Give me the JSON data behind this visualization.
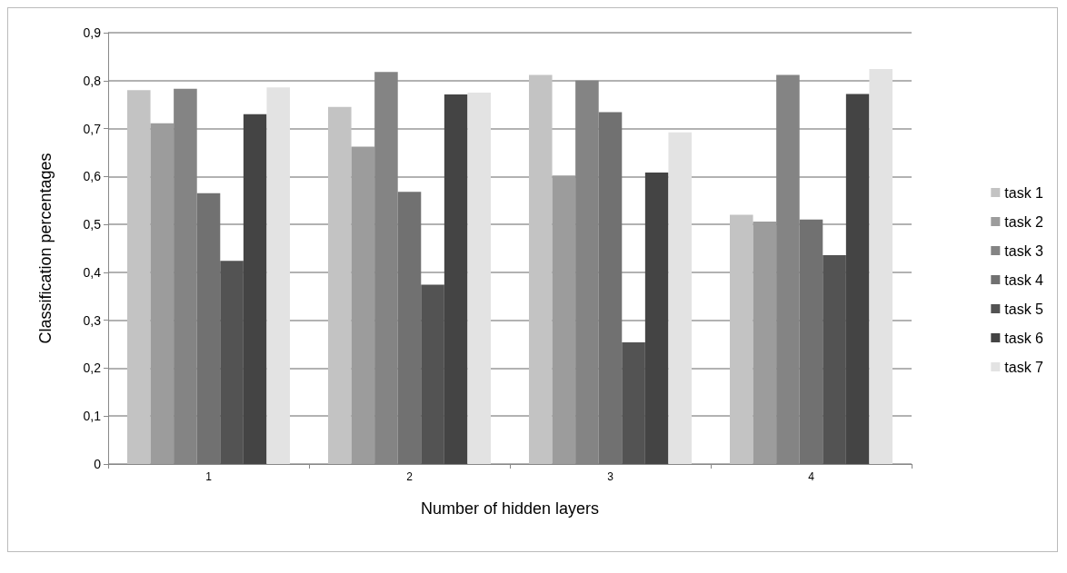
{
  "chart_data": {
    "type": "bar",
    "xlabel": "Number of hidden layers",
    "ylabel": "Classification percentages",
    "categories": [
      "1",
      "2",
      "3",
      "4"
    ],
    "series": [
      {
        "name": "task 1",
        "color": "#c3c3c3",
        "values": [
          0.78,
          0.745,
          0.812,
          0.52
        ]
      },
      {
        "name": "task 2",
        "color": "#9c9c9c",
        "values": [
          0.711,
          0.662,
          0.602,
          0.506
        ]
      },
      {
        "name": "task 3",
        "color": "#848484",
        "values": [
          0.783,
          0.818,
          0.8,
          0.812
        ]
      },
      {
        "name": "task 4",
        "color": "#717171",
        "values": [
          0.565,
          0.568,
          0.734,
          0.51
        ]
      },
      {
        "name": "task 5",
        "color": "#535353",
        "values": [
          0.424,
          0.374,
          0.254,
          0.436
        ]
      },
      {
        "name": "task 6",
        "color": "#444444",
        "values": [
          0.73,
          0.771,
          0.608,
          0.772
        ]
      },
      {
        "name": "task 7",
        "color": "#e3e3e3",
        "values": [
          0.786,
          0.775,
          0.692,
          0.824
        ]
      }
    ],
    "ylim": [
      0,
      0.9
    ],
    "yticks": [
      0,
      {
        "value": 0.1,
        "label": "0,1"
      },
      {
        "value": 0.2,
        "label": "0,2"
      },
      {
        "value": 0.3,
        "label": "0,3"
      },
      {
        "value": 0.4,
        "label": "0,4"
      },
      {
        "value": 0.5,
        "label": "0,5"
      },
      {
        "value": 0.6,
        "label": "0,6"
      },
      {
        "value": 0.7,
        "label": "0,7"
      },
      {
        "value": 0.8,
        "label": "0,8"
      },
      {
        "value": 0.9,
        "label": "0,9"
      }
    ],
    "grid": "y",
    "legend": "right"
  }
}
